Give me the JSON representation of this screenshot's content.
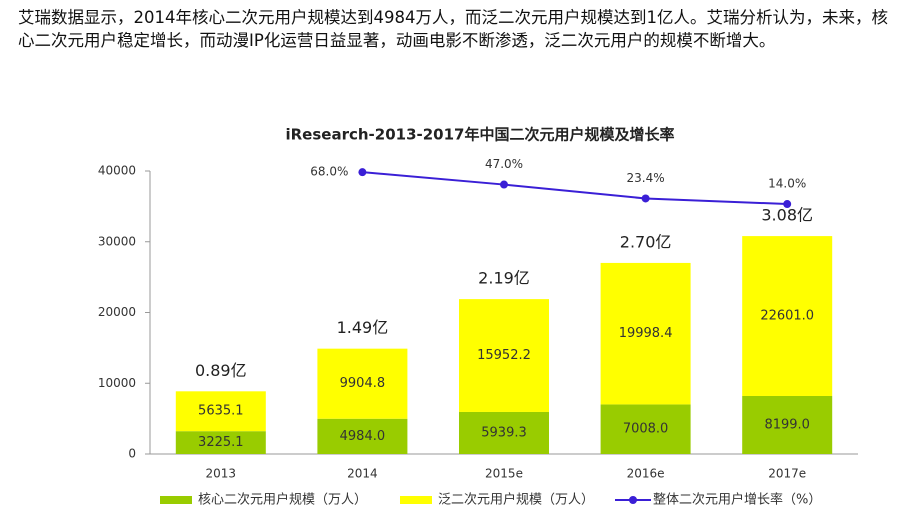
{
  "paragraph": "艾瑞数据显示，2014年核心二次元用户规模达到4984万人，而泛二次元用户规模达到1亿人。艾瑞分析认为，未来，核心二次元用户稳定增长，而动漫IP化运营日益显著，动画电影不断渗透，泛二次元用户的规模不断增大。",
  "chart_data": {
    "type": "bar",
    "stacked": true,
    "title": "iResearch-2013-2017年中国二次元用户规模及增长率",
    "categories": [
      "2013",
      "2014",
      "2015e",
      "2016e",
      "2017e"
    ],
    "series": [
      {
        "name": "核心二次元用户规模（万人）",
        "color": "#99cc00",
        "values": [
          3225.1,
          4984.0,
          5939.3,
          7008.0,
          8199.0
        ],
        "value_labels": [
          "3225.1",
          "4984.0",
          "5939.3",
          "7008.0",
          "8199.0"
        ]
      },
      {
        "name": "泛二次元用户规模（万人）",
        "color": "#ffff00",
        "values": [
          5635.1,
          9904.8,
          15952.2,
          19998.4,
          22601.0
        ],
        "value_labels": [
          "5635.1",
          "9904.8",
          "15952.2",
          "19998.4",
          "22601.0"
        ]
      },
      {
        "name": "整体二次元用户增长率（%）",
        "type": "line",
        "axis": "y2",
        "color": "#3a1fd6",
        "values": [
          null,
          68.0,
          47.0,
          23.4,
          14.0
        ],
        "value_labels": [
          null,
          "68.0%",
          "47.0%",
          "23.4%",
          "14.0%"
        ]
      }
    ],
    "annotations": [
      "0.89亿",
      "1.49亿",
      "2.19亿",
      "2.70亿",
      "3.08亿"
    ],
    "ylim": [
      0,
      40000
    ],
    "yticks": [
      0,
      10000,
      20000,
      30000,
      40000
    ],
    "y2lim": [
      -410,
      70
    ],
    "grid": false,
    "legend": "bottom"
  }
}
